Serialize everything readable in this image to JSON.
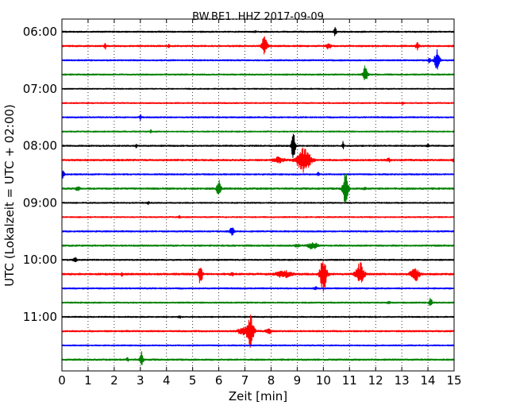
{
  "chart_data": {
    "type": "line",
    "title": "BW.BE1..HHZ 2017-09-09",
    "xlabel": "Zeit  [min]",
    "ylabel": "UTC (Lokalzeit = UTC + 02:00)",
    "xlim": [
      0,
      15
    ],
    "x_ticks": [
      "0",
      "1",
      "2",
      "3",
      "4",
      "5",
      "6",
      "7",
      "8",
      "9",
      "10",
      "11",
      "12",
      "13",
      "14",
      "15"
    ],
    "y_ticks": [
      "06:00",
      "07:00",
      "08:00",
      "09:00",
      "10:00",
      "11:00"
    ],
    "grid": "vertical-dotted",
    "row_interval_minutes": 15,
    "series_colors": [
      "#000000",
      "#ff0000",
      "#0000ff",
      "#008000"
    ],
    "traces": [
      {
        "start": "06:00",
        "color": "#000000",
        "noise": 0.9,
        "events": [
          [
            10.45,
            5,
            0.05
          ],
          [
            7.4,
            1.2,
            0.03
          ]
        ]
      },
      {
        "start": "06:15",
        "color": "#ff0000",
        "noise": 1.0,
        "events": [
          [
            1.65,
            5,
            0.03
          ],
          [
            7.75,
            12,
            0.1
          ],
          [
            10.2,
            4,
            0.08
          ],
          [
            13.6,
            5,
            0.06
          ],
          [
            4.1,
            1.5,
            0.05
          ]
        ]
      },
      {
        "start": "06:30",
        "color": "#0000ff",
        "noise": 0.9,
        "events": [
          [
            14.35,
            15,
            0.09
          ],
          [
            14.05,
            3,
            0.05
          ]
        ]
      },
      {
        "start": "06:45",
        "color": "#008000",
        "noise": 0.9,
        "events": [
          [
            11.6,
            11,
            0.08
          ]
        ]
      },
      {
        "start": "07:00",
        "color": "#000000",
        "noise": 0.7,
        "events": []
      },
      {
        "start": "07:15",
        "color": "#ff0000",
        "noise": 0.8,
        "events": [
          [
            13.05,
            2.5,
            0.03
          ]
        ]
      },
      {
        "start": "07:30",
        "color": "#0000ff",
        "noise": 0.9,
        "events": [
          [
            3.0,
            4,
            0.03
          ]
        ]
      },
      {
        "start": "07:45",
        "color": "#008000",
        "noise": 0.8,
        "events": [
          [
            3.4,
            4,
            0.03
          ]
        ]
      },
      {
        "start": "08:00",
        "color": "#000000",
        "noise": 0.9,
        "events": [
          [
            8.85,
            17,
            0.07
          ],
          [
            10.75,
            5,
            0.03
          ],
          [
            2.85,
            2.5,
            0.03
          ],
          [
            14.0,
            1.5,
            0.05
          ]
        ]
      },
      {
        "start": "08:15",
        "color": "#ff0000",
        "noise": 1.1,
        "events": [
          [
            9.25,
            15,
            0.25
          ],
          [
            8.3,
            3,
            0.2
          ],
          [
            12.5,
            2,
            0.08
          ],
          [
            15.0,
            3,
            0.05
          ]
        ]
      },
      {
        "start": "08:30",
        "color": "#0000ff",
        "noise": 0.9,
        "events": [
          [
            0.05,
            6,
            0.05
          ],
          [
            9.8,
            2,
            0.05
          ]
        ]
      },
      {
        "start": "08:45",
        "color": "#008000",
        "noise": 1.1,
        "events": [
          [
            6.0,
            10,
            0.08
          ],
          [
            10.85,
            20,
            0.1
          ],
          [
            0.6,
            2,
            0.08
          ],
          [
            11.6,
            2,
            0.05
          ]
        ]
      },
      {
        "start": "09:00",
        "color": "#000000",
        "noise": 0.8,
        "events": [
          [
            3.3,
            1.5,
            0.05
          ]
        ]
      },
      {
        "start": "09:15",
        "color": "#ff0000",
        "noise": 0.8,
        "events": [
          [
            4.5,
            2.5,
            0.03
          ]
        ]
      },
      {
        "start": "09:30",
        "color": "#0000ff",
        "noise": 0.9,
        "events": [
          [
            6.5,
            6,
            0.07
          ]
        ]
      },
      {
        "start": "09:45",
        "color": "#008000",
        "noise": 1.0,
        "events": [
          [
            9.6,
            4,
            0.18
          ],
          [
            9.0,
            1.5,
            0.1
          ]
        ]
      },
      {
        "start": "10:00",
        "color": "#000000",
        "noise": 0.9,
        "events": [
          [
            0.5,
            2.5,
            0.08
          ]
        ]
      },
      {
        "start": "10:15",
        "color": "#ff0000",
        "noise": 1.2,
        "events": [
          [
            5.3,
            13,
            0.07
          ],
          [
            10.0,
            22,
            0.12
          ],
          [
            11.4,
            14,
            0.15
          ],
          [
            13.5,
            9,
            0.15
          ],
          [
            8.5,
            4,
            0.3
          ],
          [
            2.3,
            3,
            0.03
          ],
          [
            6.5,
            2,
            0.06
          ]
        ]
      },
      {
        "start": "10:30",
        "color": "#0000ff",
        "noise": 0.9,
        "events": [
          [
            9.7,
            2,
            0.05
          ]
        ]
      },
      {
        "start": "10:45",
        "color": "#008000",
        "noise": 0.9,
        "events": [
          [
            14.1,
            5,
            0.06
          ],
          [
            12.5,
            1.5,
            0.05
          ]
        ]
      },
      {
        "start": "11:00",
        "color": "#000000",
        "noise": 0.8,
        "events": [
          [
            4.5,
            1.5,
            0.05
          ]
        ]
      },
      {
        "start": "11:15",
        "color": "#ff0000",
        "noise": 1.0,
        "events": [
          [
            7.2,
            20,
            0.13
          ],
          [
            6.9,
            5,
            0.15
          ],
          [
            7.9,
            3,
            0.1
          ]
        ]
      },
      {
        "start": "11:30",
        "color": "#0000ff",
        "noise": 0.8,
        "events": []
      },
      {
        "start": "11:45",
        "color": "#008000",
        "noise": 1.0,
        "events": [
          [
            3.05,
            10,
            0.06
          ],
          [
            2.5,
            2,
            0.06
          ]
        ]
      }
    ]
  }
}
